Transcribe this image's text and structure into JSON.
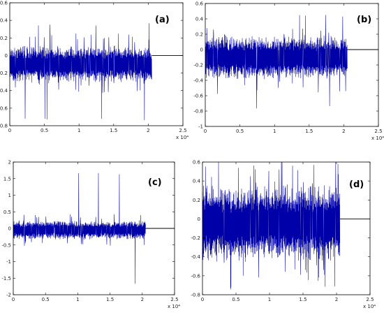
{
  "chart_data": [
    {
      "type": "line",
      "panel_label": "(a)",
      "x_multiplier_label": "x 10⁴",
      "xlim": [
        0,
        2.5
      ],
      "ylim": [
        -0.8,
        0.6
      ],
      "xticks": [
        "0",
        "0.5",
        "1",
        "1.5",
        "2",
        "2.5"
      ],
      "yticks": [
        "-0.8",
        "-0.6",
        "-0.4",
        "-0.2",
        "0",
        "0.2",
        "0.4",
        "0.6"
      ],
      "signal": {
        "x_end": 2.05,
        "center": -0.1,
        "band": 0.22,
        "peak_high": 0.38,
        "peak_low": -0.76
      },
      "flat_line": {
        "x": [
          2.05,
          2.5
        ],
        "y": 0
      }
    },
    {
      "type": "line",
      "panel_label": "(b)",
      "x_multiplier_label": "x 10⁴",
      "xlim": [
        0,
        2.5
      ],
      "ylim": [
        -1,
        0.6
      ],
      "xticks": [
        "0",
        "0.5",
        "1",
        "1.5",
        "2",
        "2.5"
      ],
      "yticks": [
        "-1",
        "-0.8",
        "-0.6",
        "-0.4",
        "-0.2",
        "0",
        "0.2",
        "0.4",
        "0.6"
      ],
      "signal": {
        "x_end": 2.05,
        "center": -0.1,
        "band": 0.3,
        "peak_high": 0.45,
        "peak_low": -0.82
      },
      "flat_line": {
        "x": [
          2.05,
          2.5
        ],
        "y": 0
      }
    },
    {
      "type": "line",
      "panel_label": "(c)",
      "x_multiplier_label": "x 10⁴",
      "xlim": [
        0,
        2.5
      ],
      "ylim": [
        -2,
        2
      ],
      "xticks": [
        "0",
        "0.5",
        "1",
        "1.5",
        "2",
        "2.5"
      ],
      "yticks": [
        "-2",
        "-1.5",
        "-1",
        "-0.5",
        "0",
        "0.5",
        "1",
        "1.5",
        "2"
      ],
      "signal": {
        "x_end": 2.05,
        "center": -0.05,
        "band": 0.3,
        "peak_high": 1.75,
        "peak_low": -1.95
      },
      "flat_line": {
        "x": [
          2.05,
          2.5
        ],
        "y": 0
      }
    },
    {
      "type": "line",
      "panel_label": "(d)",
      "x_multiplier_label": "x 10⁴",
      "xlim": [
        0,
        2.5
      ],
      "ylim": [
        -0.8,
        0.6
      ],
      "xticks": [
        "0",
        "0.5",
        "1",
        "1.5",
        "2",
        "2.5"
      ],
      "yticks": [
        "-0.8",
        "-0.6",
        "-0.4",
        "-0.2",
        "0",
        "0.2",
        "0.4",
        "0.6"
      ],
      "signal": {
        "x_end": 2.05,
        "center": -0.05,
        "band": 0.42,
        "peak_high": 0.6,
        "peak_low": -0.75
      },
      "flat_line": {
        "x": [
          2.05,
          2.5
        ],
        "y": 0
      }
    }
  ],
  "colors": {
    "signal": "#0000a8",
    "flat_line": "#000000",
    "frame": "#000000"
  }
}
